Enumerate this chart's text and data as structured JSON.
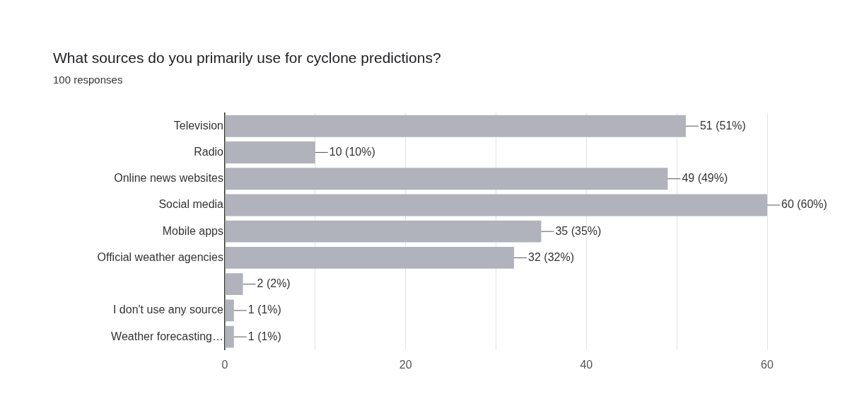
{
  "chart_data": {
    "type": "bar",
    "orientation": "horizontal",
    "title": "What sources do you primarily use for cyclone predictions?",
    "subtitle": "100 responses",
    "categories": [
      "Television",
      "Radio",
      "Online news websites",
      "Social media",
      "Mobile apps",
      "Official weather agencies",
      null,
      "I don't use any source",
      "Weather forecasting…"
    ],
    "values": [
      51,
      10,
      49,
      60,
      35,
      32,
      2,
      1,
      1
    ],
    "value_labels": [
      "51 (51%)",
      "10 (10%)",
      "49 (49%)",
      "60 (60%)",
      "35 (35%)",
      "32 (32%)",
      "2 (2%)",
      "1 (1%)",
      "1 (1%)"
    ],
    "color": "#b0b3bb",
    "xlim": [
      0,
      60
    ],
    "xticks": [
      0,
      {
        "value": 10,
        "label": null
      },
      20,
      {
        "value": 30,
        "label": null
      },
      40,
      {
        "value": 50,
        "label": null
      },
      60
    ],
    "grid": "x",
    "legend": false
  }
}
